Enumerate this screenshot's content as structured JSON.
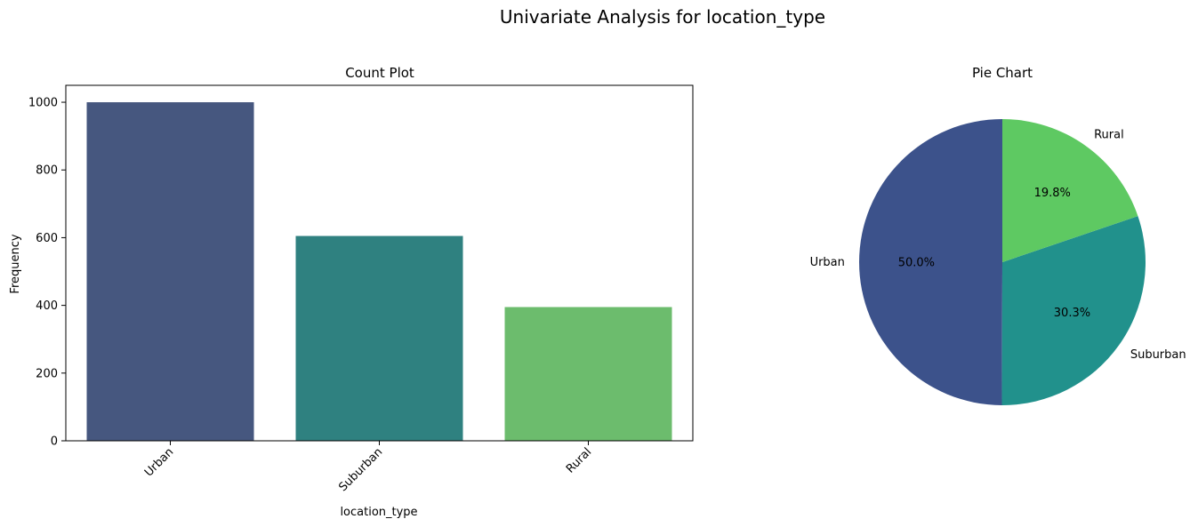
{
  "figure": {
    "suptitle": "Univariate Analysis for location_type"
  },
  "chart_data": [
    {
      "type": "bar",
      "title": "Count Plot",
      "xlabel": "location_type",
      "ylabel": "Frequency",
      "categories": [
        "Urban",
        "Suburban",
        "Rural"
      ],
      "values": [
        1000,
        605,
        395
      ],
      "colors": [
        "#46577f",
        "#2f8180",
        "#6cbc6d"
      ],
      "ylim": [
        0,
        1050
      ],
      "yticks": [
        0,
        200,
        400,
        600,
        800,
        1000
      ],
      "xtick_rotation": 45,
      "grid": false
    },
    {
      "type": "pie",
      "title": "Pie Chart",
      "labels": [
        "Urban",
        "Suburban",
        "Rural"
      ],
      "values": [
        50.0,
        30.3,
        19.8
      ],
      "autopct": [
        "50.0%",
        "30.3%",
        "19.8%"
      ],
      "colors": [
        "#3c528b",
        "#21918c",
        "#5ec962"
      ],
      "start_angle": 90,
      "direction": "counterclockwise"
    }
  ]
}
